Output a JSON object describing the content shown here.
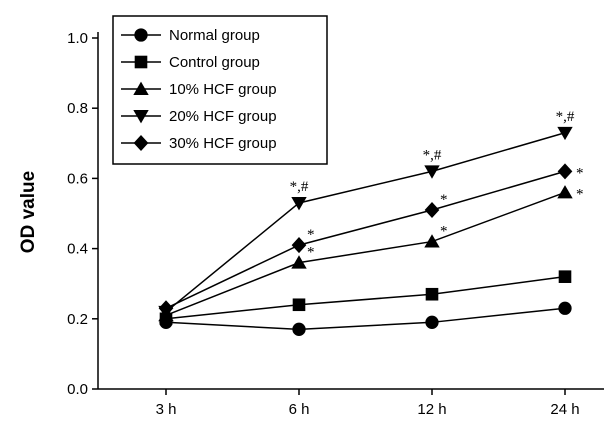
{
  "chart_data": {
    "type": "line",
    "title": "",
    "xlabel": "",
    "ylabel": "OD value",
    "categories": [
      "3 h",
      "6 h",
      "12 h",
      "24 h"
    ],
    "ylim": [
      0.0,
      1.0
    ],
    "yticks": [
      "0.0",
      "0.2",
      "0.4",
      "0.6",
      "0.8",
      "1.0"
    ],
    "grid": false,
    "legend_position": "top-left",
    "series": [
      {
        "name": "Normal group",
        "marker": "circle",
        "values": [
          0.19,
          0.17,
          0.19,
          0.23
        ]
      },
      {
        "name": "Control group",
        "marker": "square",
        "values": [
          0.2,
          0.24,
          0.27,
          0.32
        ]
      },
      {
        "name": "10% HCF group",
        "marker": "triangle-up",
        "values": [
          0.21,
          0.36,
          0.42,
          0.56
        ]
      },
      {
        "name": "20% HCF group",
        "marker": "triangle-down",
        "values": [
          0.22,
          0.53,
          0.62,
          0.73
        ]
      },
      {
        "name": "30% HCF group",
        "marker": "diamond",
        "values": [
          0.23,
          0.41,
          0.51,
          0.62
        ]
      }
    ],
    "annotations": [
      {
        "series": 3,
        "index": 1,
        "text": "*,#"
      },
      {
        "series": 3,
        "index": 2,
        "text": "*,#"
      },
      {
        "series": 3,
        "index": 3,
        "text": "*,#"
      },
      {
        "series": 4,
        "index": 1,
        "text": "*"
      },
      {
        "series": 4,
        "index": 2,
        "text": "*"
      },
      {
        "series": 4,
        "index": 3,
        "text": "*"
      },
      {
        "series": 2,
        "index": 1,
        "text": "*"
      },
      {
        "series": 2,
        "index": 2,
        "text": "*"
      },
      {
        "series": 2,
        "index": 3,
        "text": "*"
      }
    ]
  }
}
